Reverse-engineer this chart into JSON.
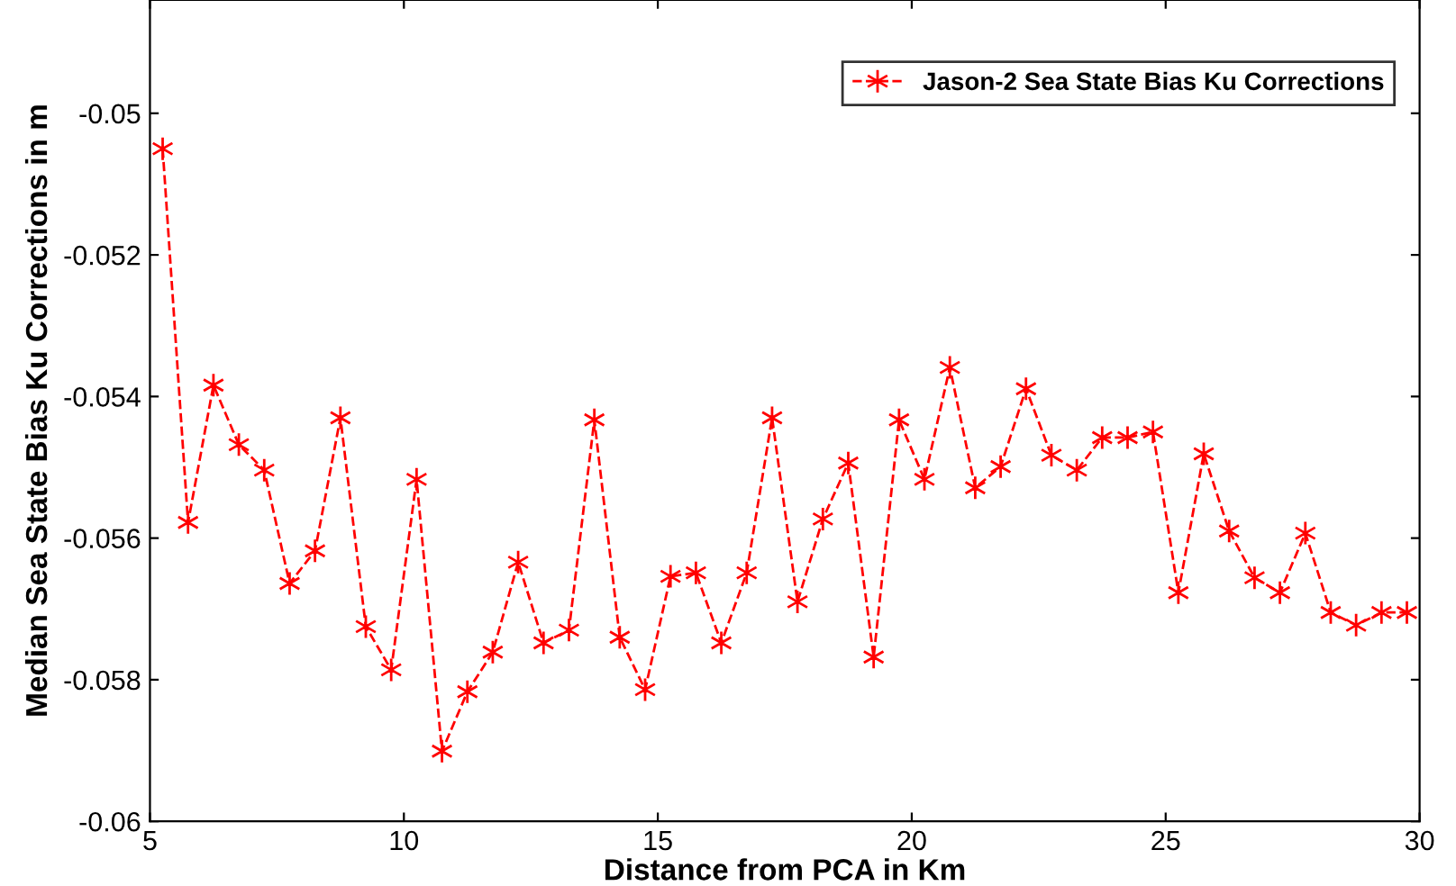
{
  "chart_data": {
    "type": "line",
    "xlabel": "Distance from PCA in Km",
    "ylabel": "Median Sea State Bias Ku Corrections in m",
    "x": [
      5.25,
      5.75,
      6.25,
      6.75,
      7.25,
      7.75,
      8.25,
      8.75,
      9.25,
      9.75,
      10.25,
      10.75,
      11.25,
      11.75,
      12.25,
      12.75,
      13.25,
      13.75,
      14.25,
      14.75,
      15.25,
      15.75,
      16.25,
      16.75,
      17.25,
      17.75,
      18.25,
      18.75,
      19.25,
      19.75,
      20.25,
      20.75,
      21.25,
      21.75,
      22.25,
      22.75,
      23.25,
      23.75,
      24.25,
      24.75,
      25.25,
      25.75,
      26.25,
      26.75,
      27.25,
      27.75,
      28.25,
      28.75,
      29.25,
      29.75
    ],
    "series": [
      {
        "name": "Jason-2 Sea State Bias Ku Corrections",
        "color": "#ff0000",
        "values": [
          -0.0505,
          -0.05578,
          -0.05384,
          -0.05468,
          -0.05504,
          -0.05664,
          -0.05618,
          -0.0543,
          -0.05725,
          -0.05786,
          -0.05517,
          -0.05901,
          -0.05817,
          -0.05761,
          -0.05634,
          -0.05748,
          -0.0573,
          -0.05433,
          -0.0574,
          -0.05814,
          -0.05654,
          -0.05649,
          -0.05748,
          -0.05649,
          -0.0543,
          -0.0569,
          -0.05573,
          -0.05494,
          -0.05768,
          -0.05433,
          -0.05517,
          -0.05359,
          -0.05529,
          -0.05499,
          -0.05389,
          -0.05483,
          -0.05504,
          -0.05458,
          -0.05458,
          -0.0545,
          -0.05677,
          -0.05481,
          -0.0559,
          -0.05656,
          -0.05677,
          -0.05593,
          -0.05705,
          -0.05723,
          -0.05705,
          -0.05705
        ]
      }
    ],
    "xlim": [
      5,
      30
    ],
    "xticks": [
      5,
      10,
      15,
      20,
      25,
      30
    ],
    "ylim": [
      -0.06,
      -0.0484
    ],
    "yticks": [
      -0.06,
      -0.058,
      -0.056,
      -0.054,
      -0.052,
      -0.05
    ],
    "grid": false,
    "legend": "top right",
    "marker": "cross",
    "line_style": "dashed"
  }
}
